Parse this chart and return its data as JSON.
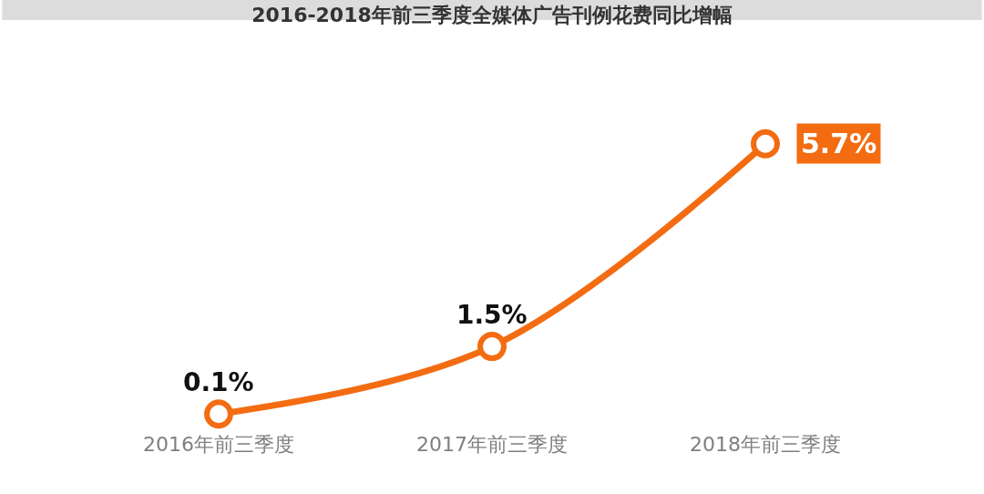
{
  "chart_data": {
    "type": "line",
    "title": "2016-2018年前三季度全媒体广告刊例花费同比增幅",
    "categories": [
      "2016年前三季度",
      "2017年前三季度",
      "2018年前三季度"
    ],
    "series": [
      {
        "color": "#f36c12",
        "values": [
          0.1,
          1.5,
          5.7
        ],
        "value_labels": [
          "0.1%",
          "1.5%",
          "5.7%"
        ]
      }
    ],
    "marker": "circle",
    "line_style": "solid",
    "legend": false
  }
}
